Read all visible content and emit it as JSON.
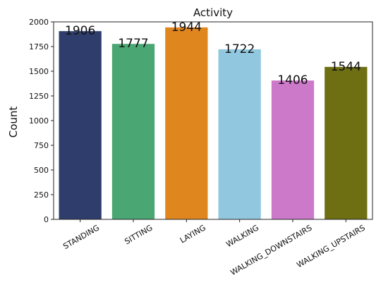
{
  "chart_data": {
    "type": "bar",
    "title": "Activity",
    "xlabel": "",
    "ylabel": "Count",
    "categories": [
      "STANDING",
      "SITTING",
      "LAYING",
      "WALKING",
      "WALKING_DOWNSTAIRS",
      "WALKING_UPSTAIRS"
    ],
    "values": [
      1906,
      1777,
      1944,
      1722,
      1406,
      1544
    ],
    "data_labels": [
      "1906",
      "1777",
      "1944",
      "1722",
      "1406",
      "1544"
    ],
    "colors": [
      "#2e3d6b",
      "#4aa774",
      "#e0861f",
      "#92c8df",
      "#cc79c9",
      "#6e6e12"
    ],
    "ylim": [
      0,
      2000
    ],
    "yticks": [
      0,
      250,
      500,
      750,
      1000,
      1250,
      1500,
      1750,
      2000
    ],
    "ytick_labels": [
      "0",
      "250",
      "500",
      "750",
      "1000",
      "1250",
      "1500",
      "1750",
      "2000"
    ],
    "grid": false,
    "legend": "none"
  }
}
